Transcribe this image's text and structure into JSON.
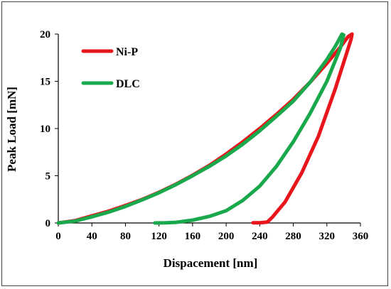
{
  "chart_data": {
    "type": "line",
    "xlabel": "Dispacement [nm]",
    "ylabel": "Peak Load [mN]",
    "xlim": [
      0,
      360
    ],
    "ylim": [
      0,
      20
    ],
    "xticks": [
      0,
      40,
      80,
      120,
      160,
      200,
      240,
      280,
      320,
      360
    ],
    "yticks": [
      0,
      5,
      10,
      15,
      20
    ],
    "grid": false,
    "legend": "top-left",
    "series": [
      {
        "name": "Ni-P",
        "color": "#e8151b",
        "x": [
          0,
          20,
          40,
          60,
          80,
          100,
          120,
          140,
          160,
          180,
          200,
          220,
          240,
          260,
          280,
          300,
          320,
          335,
          345,
          350,
          349,
          330,
          310,
          290,
          270,
          255,
          249,
          240,
          232
        ],
        "y": [
          0,
          0.25,
          0.75,
          1.25,
          1.85,
          2.5,
          3.25,
          4.1,
          5.05,
          6.1,
          7.3,
          8.6,
          10.0,
          11.5,
          13.1,
          14.9,
          16.9,
          18.5,
          19.7,
          20.0,
          19.5,
          14.2,
          9.2,
          5.3,
          2.2,
          0.6,
          0.1,
          0.02,
          0.02
        ]
      },
      {
        "name": "DLC",
        "color": "#19a84b",
        "x": [
          0,
          20,
          40,
          60,
          80,
          100,
          120,
          140,
          160,
          180,
          200,
          220,
          240,
          260,
          280,
          300,
          320,
          330,
          335,
          338,
          340,
          336,
          320,
          300,
          280,
          260,
          240,
          220,
          200,
          180,
          160,
          140,
          128,
          115
        ],
        "y": [
          0,
          0.2,
          0.65,
          1.15,
          1.75,
          2.45,
          3.2,
          4.05,
          5.0,
          6.0,
          7.1,
          8.35,
          9.75,
          11.3,
          12.9,
          14.9,
          17.3,
          18.7,
          19.5,
          20.0,
          19.9,
          18.5,
          15.0,
          11.6,
          8.6,
          6.0,
          3.9,
          2.4,
          1.3,
          0.7,
          0.3,
          0.07,
          0.02,
          0.0
        ]
      }
    ]
  }
}
